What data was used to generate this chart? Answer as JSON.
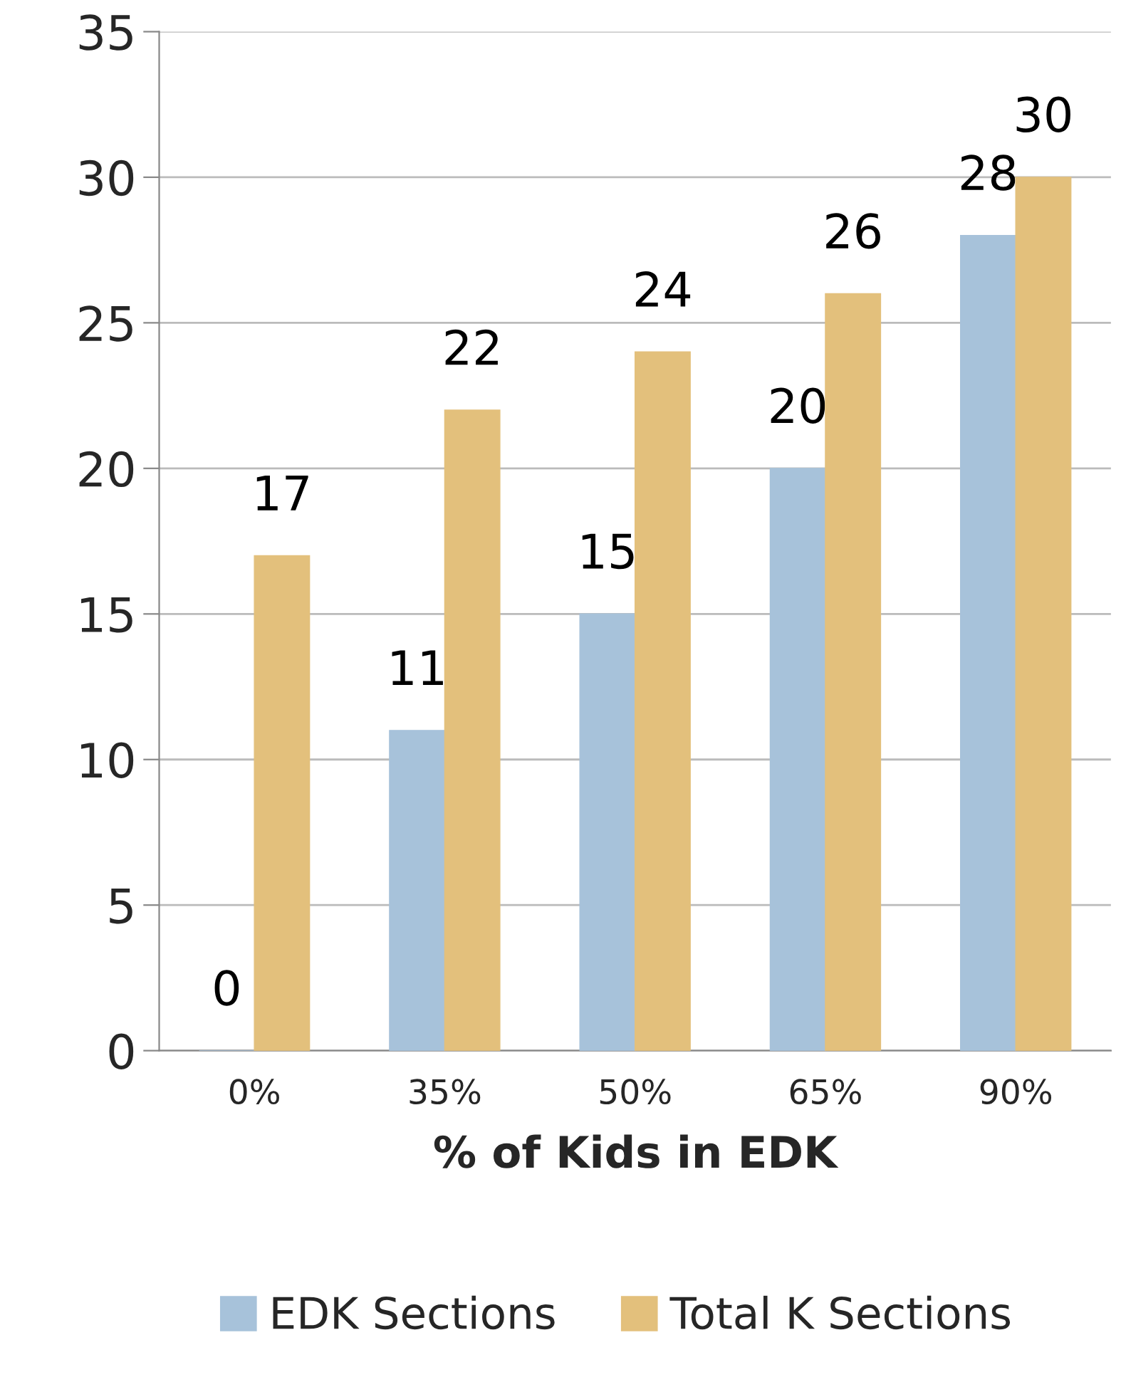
{
  "chart_data": {
    "type": "bar",
    "xlabel": "% of Kids in EDK",
    "categories": [
      "0%",
      "35%",
      "50%",
      "65%",
      "90%"
    ],
    "series": [
      {
        "name": "EDK Sections",
        "color": "#a7c2da",
        "values": [
          0,
          11,
          15,
          20,
          28
        ]
      },
      {
        "name": "Total K Sections",
        "color": "#e3c07c",
        "values": [
          17,
          22,
          24,
          26,
          30
        ]
      }
    ],
    "ylim": [
      0,
      35
    ],
    "yticks": [
      0,
      5,
      10,
      15,
      20,
      25,
      30,
      35
    ],
    "grid": "y",
    "legend": "bottom",
    "data_labels": true
  }
}
